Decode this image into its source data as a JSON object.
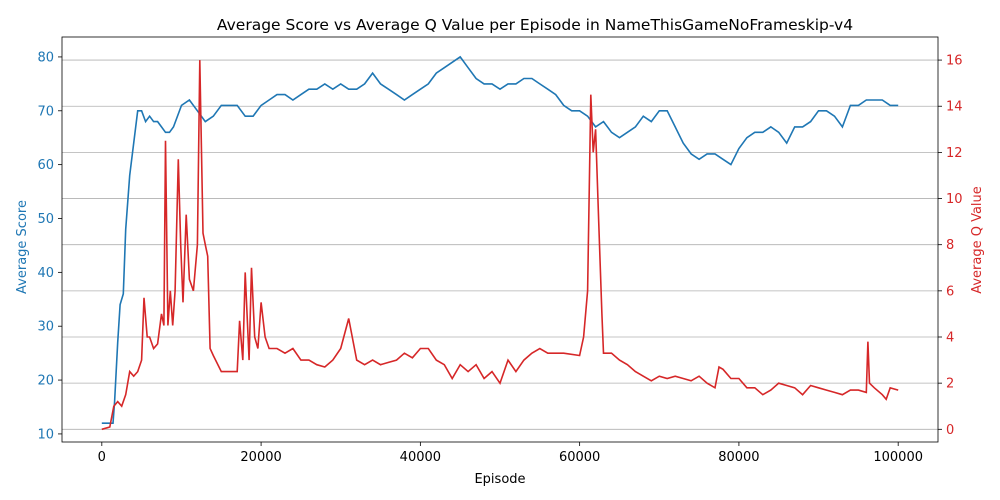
{
  "chart_data": {
    "type": "line",
    "title": "Average Score vs Average Q Value per Episode in NameThisGameNoFrameskip-v4",
    "xlabel": "Episode",
    "ylabel_left": "Average Score",
    "ylabel_right": "Average Q Value",
    "xlim": [
      -5000,
      105000
    ],
    "ylim_left": [
      8.5,
      83.7
    ],
    "ylim_right": [
      -0.55,
      17.0
    ],
    "x_ticks": [
      0,
      20000,
      40000,
      60000,
      80000,
      100000
    ],
    "x_tick_labels": [
      "0",
      "20000",
      "40000",
      "60000",
      "80000",
      "100000"
    ],
    "y_left_ticks": [
      10,
      20,
      30,
      40,
      50,
      60,
      70,
      80
    ],
    "y_right_ticks": [
      0,
      2,
      4,
      6,
      8,
      10,
      12,
      14,
      16
    ],
    "grid": "horizontal, right axis",
    "colors": {
      "score": "#1f77b4",
      "q": "#d62728",
      "grid": "#b0b0b0",
      "axis": "#000000"
    },
    "series": [
      {
        "name": "Average Score",
        "axis": "left",
        "color": "#1f77b4",
        "points": [
          [
            0,
            12
          ],
          [
            1000,
            12
          ],
          [
            1400,
            12
          ],
          [
            1600,
            16
          ],
          [
            2000,
            27
          ],
          [
            2300,
            34
          ],
          [
            2700,
            36
          ],
          [
            3000,
            48
          ],
          [
            3500,
            58
          ],
          [
            4000,
            64
          ],
          [
            4500,
            70
          ],
          [
            5000,
            70
          ],
          [
            5500,
            68
          ],
          [
            6000,
            69
          ],
          [
            6500,
            68
          ],
          [
            7000,
            68
          ],
          [
            7500,
            67
          ],
          [
            8000,
            66
          ],
          [
            8500,
            66
          ],
          [
            9000,
            67
          ],
          [
            10000,
            71
          ],
          [
            11000,
            72
          ],
          [
            12000,
            70
          ],
          [
            13000,
            68
          ],
          [
            14000,
            69
          ],
          [
            15000,
            71
          ],
          [
            16000,
            71
          ],
          [
            17000,
            71
          ],
          [
            18000,
            69
          ],
          [
            19000,
            69
          ],
          [
            20000,
            71
          ],
          [
            21000,
            72
          ],
          [
            22000,
            73
          ],
          [
            23000,
            73
          ],
          [
            24000,
            72
          ],
          [
            25000,
            73
          ],
          [
            26000,
            74
          ],
          [
            27000,
            74
          ],
          [
            28000,
            75
          ],
          [
            29000,
            74
          ],
          [
            30000,
            75
          ],
          [
            31000,
            74
          ],
          [
            32000,
            74
          ],
          [
            33000,
            75
          ],
          [
            34000,
            77
          ],
          [
            35000,
            75
          ],
          [
            36000,
            74
          ],
          [
            37000,
            73
          ],
          [
            38000,
            72
          ],
          [
            39000,
            73
          ],
          [
            40000,
            74
          ],
          [
            41000,
            75
          ],
          [
            42000,
            77
          ],
          [
            43000,
            78
          ],
          [
            44000,
            79
          ],
          [
            45000,
            80
          ],
          [
            46000,
            78
          ],
          [
            47000,
            76
          ],
          [
            48000,
            75
          ],
          [
            49000,
            75
          ],
          [
            50000,
            74
          ],
          [
            51000,
            75
          ],
          [
            52000,
            75
          ],
          [
            53000,
            76
          ],
          [
            54000,
            76
          ],
          [
            55000,
            75
          ],
          [
            56000,
            74
          ],
          [
            57000,
            73
          ],
          [
            58000,
            71
          ],
          [
            59000,
            70
          ],
          [
            60000,
            70
          ],
          [
            61000,
            69
          ],
          [
            62000,
            67
          ],
          [
            63000,
            68
          ],
          [
            64000,
            66
          ],
          [
            65000,
            65
          ],
          [
            66000,
            66
          ],
          [
            67000,
            67
          ],
          [
            68000,
            69
          ],
          [
            69000,
            68
          ],
          [
            70000,
            70
          ],
          [
            71000,
            70
          ],
          [
            72000,
            67
          ],
          [
            73000,
            64
          ],
          [
            74000,
            62
          ],
          [
            75000,
            61
          ],
          [
            76000,
            62
          ],
          [
            77000,
            62
          ],
          [
            78000,
            61
          ],
          [
            79000,
            60
          ],
          [
            80000,
            63
          ],
          [
            81000,
            65
          ],
          [
            82000,
            66
          ],
          [
            83000,
            66
          ],
          [
            84000,
            67
          ],
          [
            85000,
            66
          ],
          [
            86000,
            64
          ],
          [
            87000,
            67
          ],
          [
            88000,
            67
          ],
          [
            89000,
            68
          ],
          [
            90000,
            70
          ],
          [
            91000,
            70
          ],
          [
            92000,
            69
          ],
          [
            93000,
            67
          ],
          [
            94000,
            71
          ],
          [
            95000,
            71
          ],
          [
            96000,
            72
          ],
          [
            97000,
            72
          ],
          [
            98000,
            72
          ],
          [
            99000,
            71
          ],
          [
            100000,
            71
          ]
        ]
      },
      {
        "name": "Average Q Value",
        "axis": "right",
        "color": "#d62728",
        "points": [
          [
            0,
            0
          ],
          [
            1000,
            0.1
          ],
          [
            1500,
            1
          ],
          [
            2000,
            1.2
          ],
          [
            2500,
            1
          ],
          [
            3000,
            1.5
          ],
          [
            3500,
            2.5
          ],
          [
            4000,
            2.3
          ],
          [
            4500,
            2.5
          ],
          [
            5000,
            3
          ],
          [
            5300,
            5.7
          ],
          [
            5700,
            4
          ],
          [
            6000,
            4
          ],
          [
            6500,
            3.5
          ],
          [
            7000,
            3.7
          ],
          [
            7500,
            5
          ],
          [
            7800,
            4.5
          ],
          [
            8000,
            12.5
          ],
          [
            8300,
            4.5
          ],
          [
            8600,
            6
          ],
          [
            8900,
            4.5
          ],
          [
            9200,
            6
          ],
          [
            9600,
            11.7
          ],
          [
            9900,
            8
          ],
          [
            10200,
            5.5
          ],
          [
            10600,
            9.3
          ],
          [
            11000,
            6.5
          ],
          [
            11500,
            6
          ],
          [
            12000,
            8
          ],
          [
            12300,
            16
          ],
          [
            12700,
            8.5
          ],
          [
            13000,
            8
          ],
          [
            13300,
            7.5
          ],
          [
            13600,
            3.5
          ],
          [
            14000,
            3.2
          ],
          [
            15000,
            2.5
          ],
          [
            16000,
            2.5
          ],
          [
            17000,
            2.5
          ],
          [
            17300,
            4.7
          ],
          [
            17700,
            3
          ],
          [
            18000,
            6.8
          ],
          [
            18500,
            3
          ],
          [
            18800,
            7
          ],
          [
            19200,
            4
          ],
          [
            19600,
            3.5
          ],
          [
            20000,
            5.5
          ],
          [
            20500,
            4
          ],
          [
            21000,
            3.5
          ],
          [
            22000,
            3.5
          ],
          [
            23000,
            3.3
          ],
          [
            24000,
            3.5
          ],
          [
            25000,
            3
          ],
          [
            26000,
            3
          ],
          [
            27000,
            2.8
          ],
          [
            28000,
            2.7
          ],
          [
            29000,
            3
          ],
          [
            30000,
            3.5
          ],
          [
            31000,
            4.8
          ],
          [
            32000,
            3
          ],
          [
            33000,
            2.8
          ],
          [
            34000,
            3
          ],
          [
            35000,
            2.8
          ],
          [
            36000,
            2.9
          ],
          [
            37000,
            3
          ],
          [
            38000,
            3.3
          ],
          [
            39000,
            3.1
          ],
          [
            40000,
            3.5
          ],
          [
            41000,
            3.5
          ],
          [
            42000,
            3
          ],
          [
            43000,
            2.8
          ],
          [
            44000,
            2.2
          ],
          [
            45000,
            2.8
          ],
          [
            46000,
            2.5
          ],
          [
            47000,
            2.8
          ],
          [
            48000,
            2.2
          ],
          [
            49000,
            2.5
          ],
          [
            50000,
            2
          ],
          [
            51000,
            3
          ],
          [
            52000,
            2.5
          ],
          [
            53000,
            3
          ],
          [
            54000,
            3.3
          ],
          [
            55000,
            3.5
          ],
          [
            56000,
            3.3
          ],
          [
            58000,
            3.3
          ],
          [
            60000,
            3.2
          ],
          [
            60500,
            4
          ],
          [
            61000,
            6
          ],
          [
            61400,
            14.5
          ],
          [
            61700,
            12
          ],
          [
            62000,
            13
          ],
          [
            62400,
            9
          ],
          [
            62800,
            5
          ],
          [
            63000,
            3.3
          ],
          [
            64000,
            3.3
          ],
          [
            65000,
            3
          ],
          [
            66000,
            2.8
          ],
          [
            67000,
            2.5
          ],
          [
            68000,
            2.3
          ],
          [
            69000,
            2.1
          ],
          [
            70000,
            2.3
          ],
          [
            71000,
            2.2
          ],
          [
            72000,
            2.3
          ],
          [
            73000,
            2.2
          ],
          [
            74000,
            2.1
          ],
          [
            75000,
            2.3
          ],
          [
            76000,
            2
          ],
          [
            77000,
            1.8
          ],
          [
            77500,
            2.7
          ],
          [
            78000,
            2.6
          ],
          [
            79000,
            2.2
          ],
          [
            80000,
            2.2
          ],
          [
            81000,
            1.8
          ],
          [
            82000,
            1.8
          ],
          [
            83000,
            1.5
          ],
          [
            84000,
            1.7
          ],
          [
            85000,
            2
          ],
          [
            86000,
            1.9
          ],
          [
            87000,
            1.8
          ],
          [
            88000,
            1.5
          ],
          [
            89000,
            1.9
          ],
          [
            90000,
            1.8
          ],
          [
            91000,
            1.7
          ],
          [
            92000,
            1.6
          ],
          [
            93000,
            1.5
          ],
          [
            94000,
            1.7
          ],
          [
            95000,
            1.7
          ],
          [
            96000,
            1.6
          ],
          [
            96200,
            3.8
          ],
          [
            96400,
            2
          ],
          [
            97000,
            1.8
          ],
          [
            98000,
            1.5
          ],
          [
            98500,
            1.3
          ],
          [
            99000,
            1.8
          ],
          [
            100000,
            1.7
          ]
        ]
      }
    ]
  }
}
